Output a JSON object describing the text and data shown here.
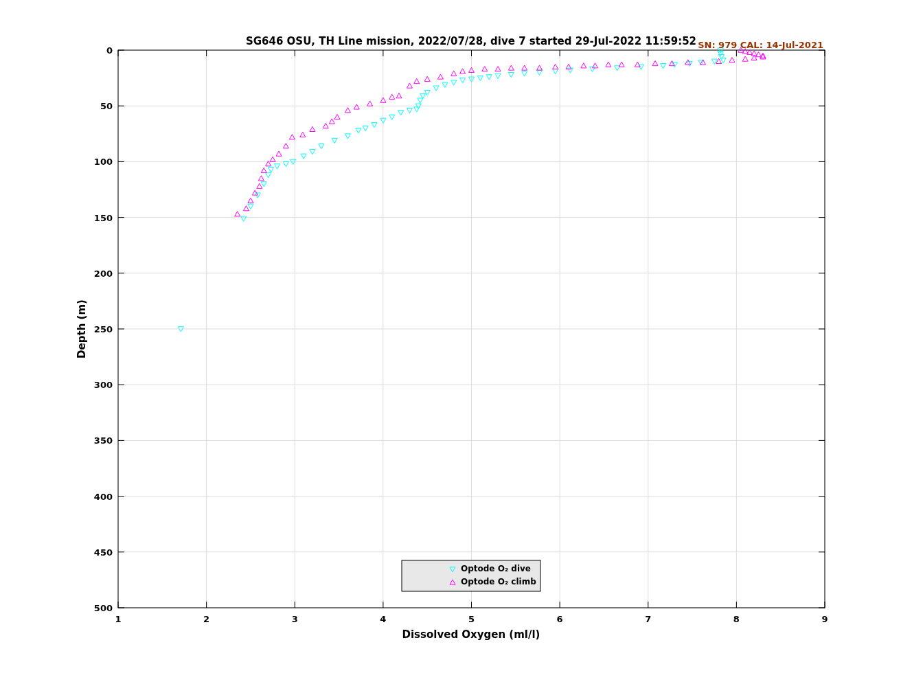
{
  "chart_data": {
    "type": "scatter",
    "title": "SG646 OSU, TH Line mission, 2022/07/28, dive 7 started 29-Jul-2022 11:59:52",
    "xlabel": "Dissolved Oxygen (ml/l)",
    "ylabel": "Depth (m)",
    "annotations": [
      "SN: 979  CAL: 14-Jul-2021"
    ],
    "xlim": [
      1,
      9
    ],
    "xticks": [
      1,
      2,
      3,
      4,
      5,
      6,
      7,
      8,
      9
    ],
    "ylim": [
      500,
      0
    ],
    "yticks": [
      0,
      50,
      100,
      150,
      200,
      250,
      300,
      350,
      400,
      450,
      500
    ],
    "grid": true,
    "legend": "bottom",
    "marker": "triangle",
    "series": [
      {
        "name": "Optode O₂ dive",
        "color": "#00ffff",
        "x": [
          7.82,
          7.82,
          7.83,
          7.85,
          7.75,
          7.6,
          7.47,
          7.3,
          7.17,
          6.92,
          6.65,
          6.37,
          6.12,
          5.95,
          5.77,
          5.6,
          5.45,
          5.3,
          5.2,
          5.1,
          5.0,
          4.9,
          4.8,
          4.7,
          4.6,
          4.5,
          4.45,
          4.42,
          4.4,
          4.38,
          4.3,
          4.2,
          4.1,
          4.0,
          3.9,
          3.8,
          3.72,
          3.6,
          3.45,
          3.3,
          3.2,
          3.1,
          2.98,
          2.9,
          2.8,
          2.73,
          2.7,
          2.65,
          2.58,
          2.5,
          2.42,
          1.71
        ],
        "values": [
          0,
          3,
          6,
          9,
          10,
          11,
          12,
          13,
          14,
          15,
          16,
          17,
          18,
          19,
          20,
          21,
          22,
          23,
          24,
          25,
          26,
          27,
          29,
          31,
          34,
          38,
          41,
          45,
          50,
          53,
          54,
          56,
          60,
          63,
          67,
          70,
          72,
          77,
          81,
          86,
          91,
          95,
          100,
          102,
          104,
          107,
          112,
          120,
          130,
          140,
          151,
          250
        ]
      },
      {
        "name": "Optode O₂ climb",
        "color": "#ff00ff",
        "x": [
          8.05,
          8.1,
          8.15,
          8.2,
          8.25,
          8.3,
          8.3,
          8.2,
          8.1,
          7.95,
          7.8,
          7.62,
          7.45,
          7.27,
          7.08,
          6.88,
          6.7,
          6.55,
          6.4,
          6.27,
          6.1,
          5.95,
          5.77,
          5.6,
          5.45,
          5.3,
          5.15,
          5.0,
          4.9,
          4.8,
          4.65,
          4.5,
          4.38,
          4.3,
          4.18,
          4.1,
          4.0,
          3.85,
          3.7,
          3.6,
          3.48,
          3.42,
          3.35,
          3.2,
          3.09,
          2.97,
          2.9,
          2.82,
          2.75,
          2.7,
          2.65,
          2.62,
          2.6,
          2.55,
          2.5,
          2.45,
          2.35
        ],
        "values": [
          0,
          1,
          2,
          3,
          4,
          5,
          6,
          7,
          8,
          9,
          10,
          11,
          11,
          12,
          12,
          13,
          13,
          13,
          14,
          14,
          15,
          15,
          16,
          16,
          16,
          17,
          17,
          18,
          19,
          21,
          24,
          26,
          28,
          32,
          41,
          42,
          45,
          48,
          51,
          54,
          60,
          64,
          68,
          71,
          76,
          78,
          86,
          93,
          98,
          102,
          108,
          115,
          122,
          128,
          135,
          142,
          147
        ]
      }
    ]
  }
}
